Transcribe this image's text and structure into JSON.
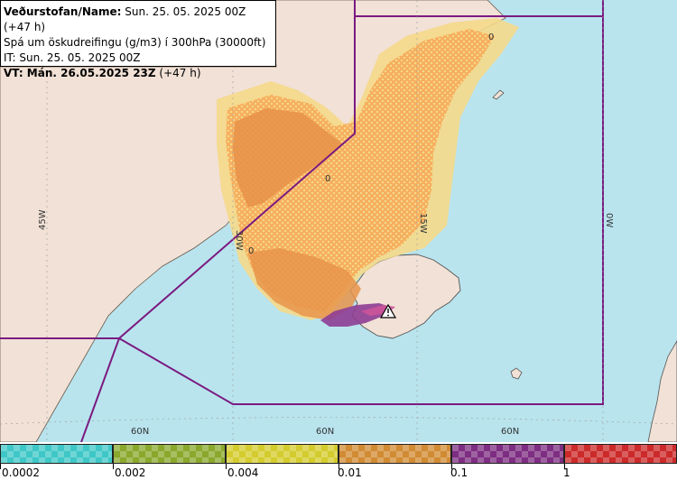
{
  "header": {
    "line1_label": "Veðurstofan/Name:",
    "line1_value": " Sun. 25. 05. 2025 00Z (+47 h)",
    "line2": "Spá um öskudreifingu (g/m3) í 300hPa (30000ft)",
    "line3": "IT: Sun. 25. 05. 2025 00Z",
    "line4_label": "VT: Mán. 26.05.2025 23Z",
    "line4_value": " (+47 h)"
  },
  "map": {
    "lon_labels": [
      "45W",
      "30W",
      "15W",
      "0W"
    ],
    "lat_labels": [
      "60N",
      "60N",
      "60N"
    ],
    "contour_labels": [
      "0",
      "0",
      "0"
    ],
    "colors": {
      "sea": "#b9e4ee",
      "land": "#f1e1d6",
      "plume_low": "#f5d98a",
      "plume_mid": "#f6b060",
      "plume_high": "#e8944a",
      "plume_top": "#8e3d93",
      "fir_line": "#7b1a80"
    },
    "volcano_icon": "volcano-warning-icon"
  },
  "legend": {
    "labels": [
      "0.0002",
      "0.002",
      "0.004",
      "0.01",
      "0.1",
      "1"
    ],
    "colors": [
      "#3fc7c7",
      "#8aa82c",
      "#d4cc2e",
      "#d18b33",
      "#7e2e82",
      "#cc2a2a"
    ]
  }
}
